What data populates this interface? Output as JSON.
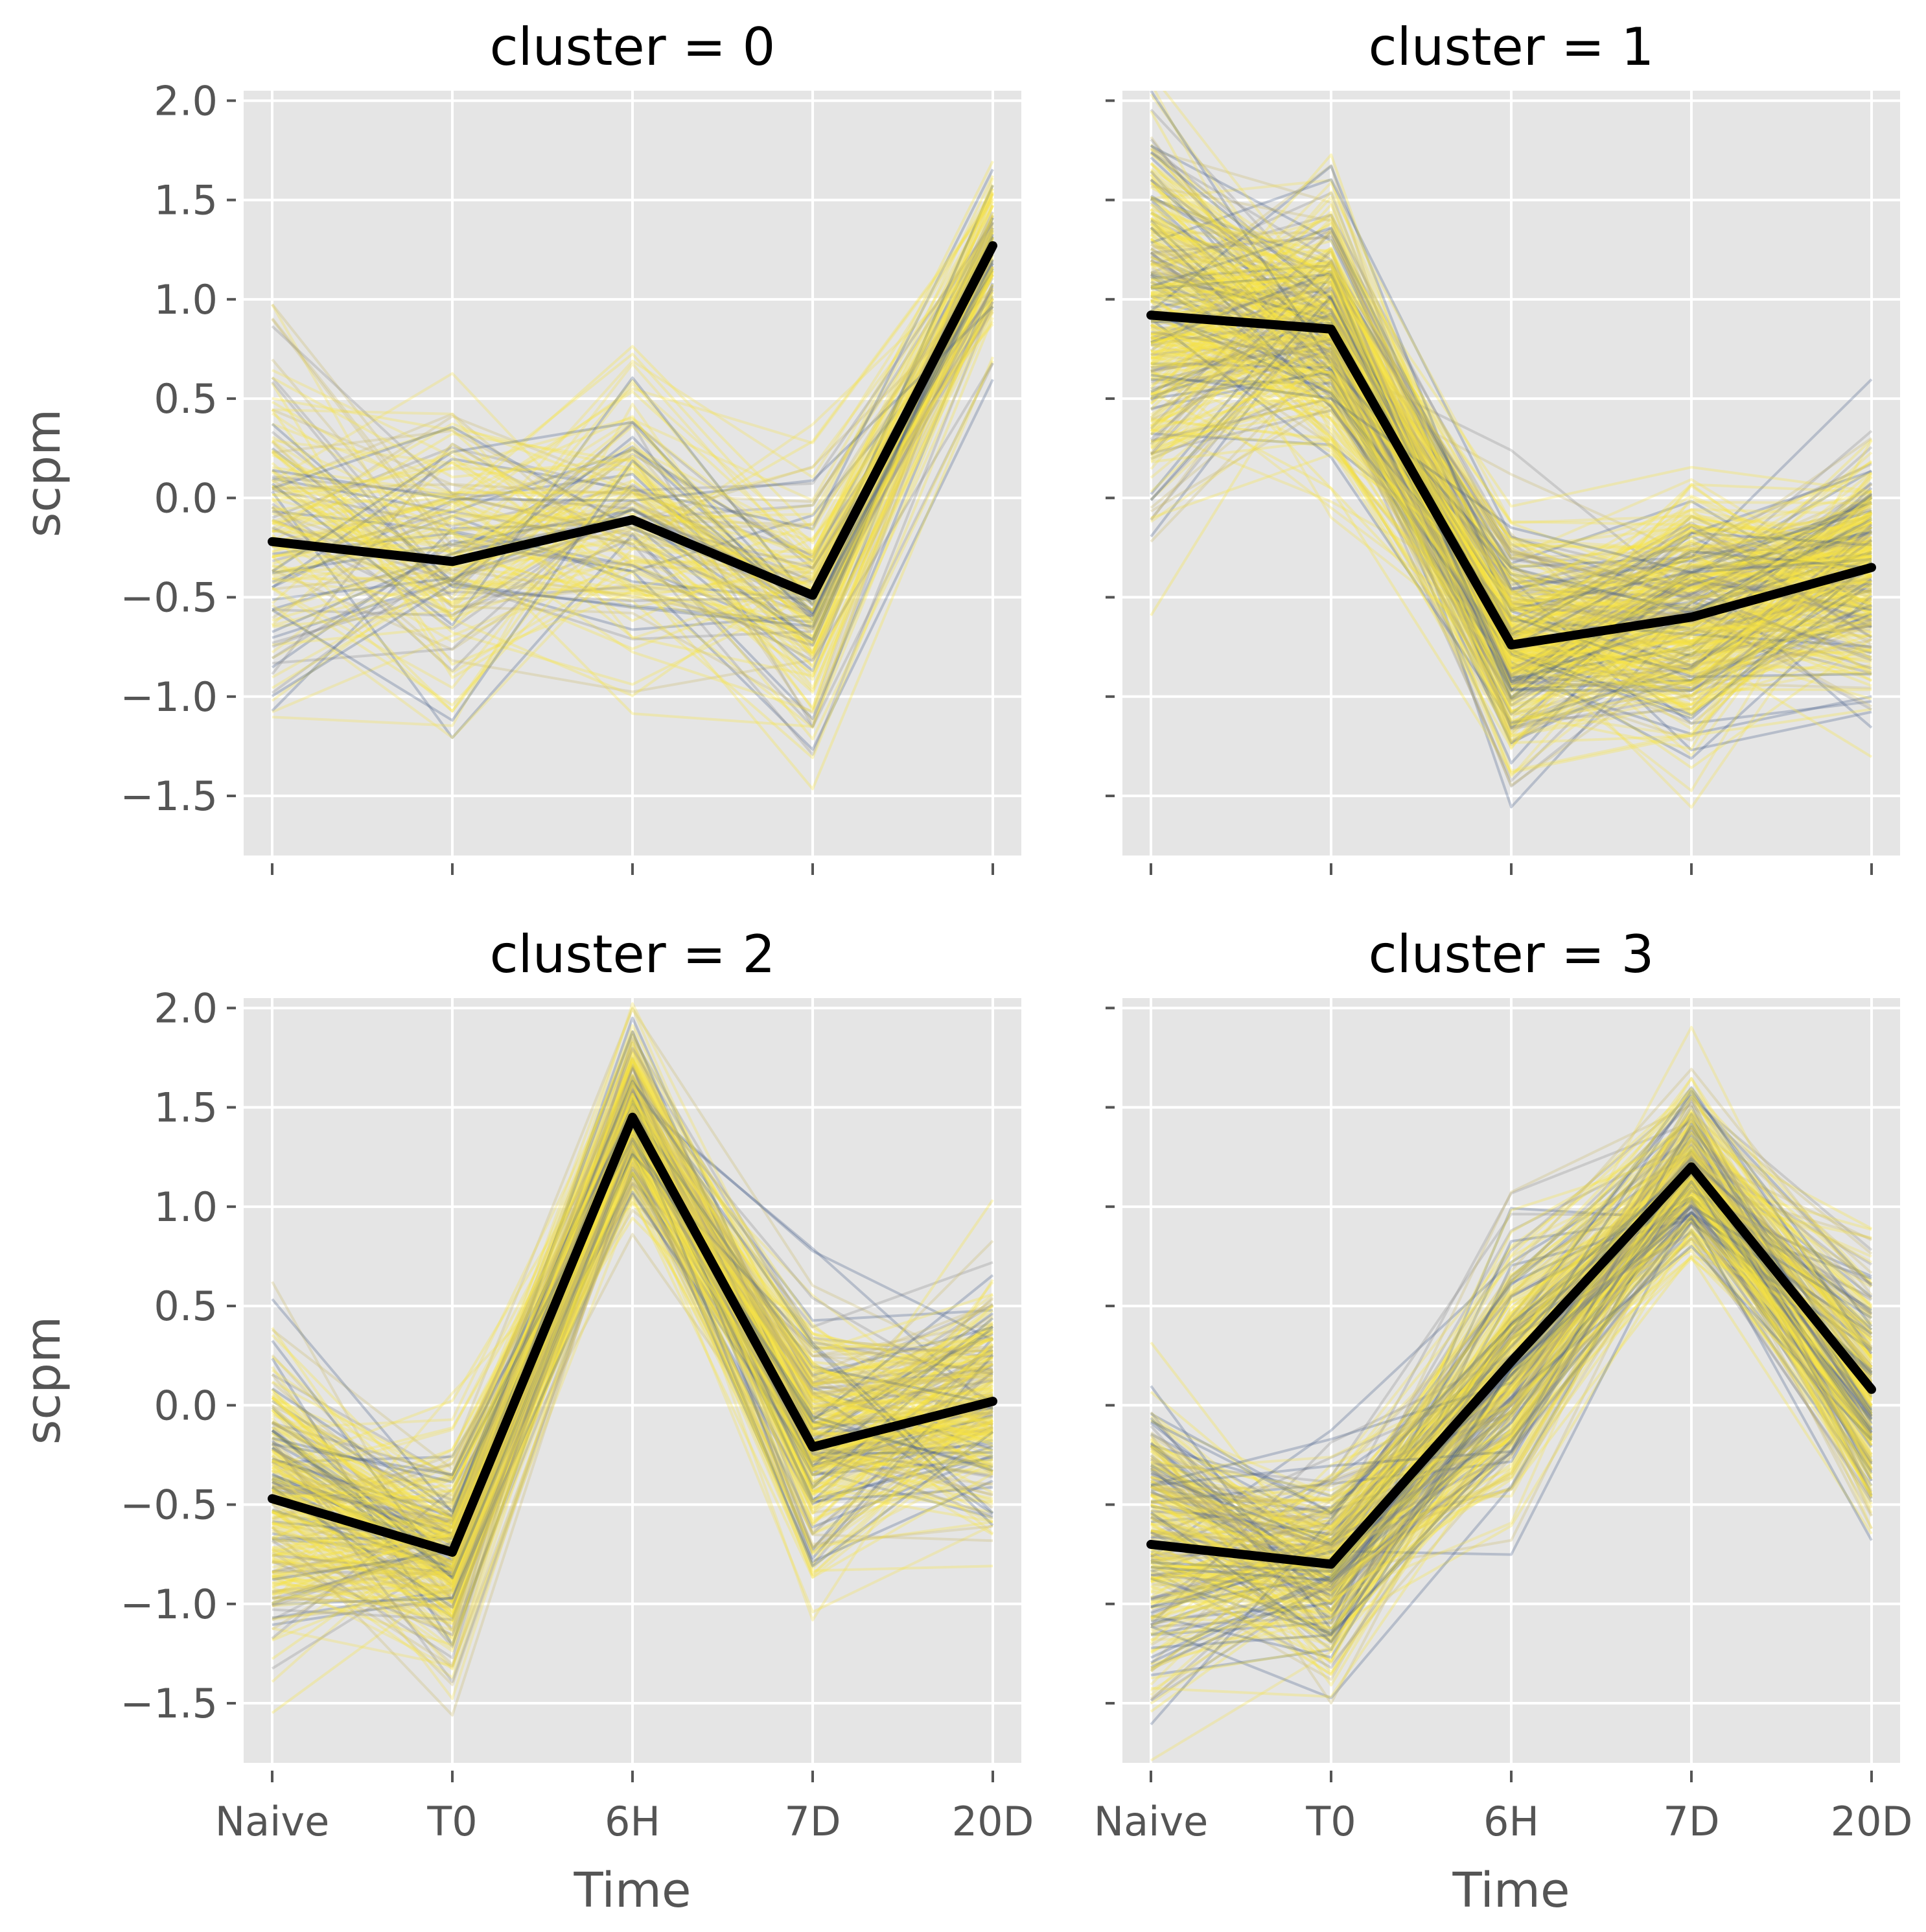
{
  "chart_data": {
    "type": "line",
    "facet_variable": "cluster",
    "x_categories": [
      "Naive",
      "T0",
      "6H",
      "7D",
      "20D"
    ],
    "xlabel": "Time",
    "ylabel": "scpm",
    "ylim": [
      -1.8,
      2.05
    ],
    "yticks": [
      -1.5,
      -1.0,
      -0.5,
      0.0,
      0.5,
      1.0,
      1.5,
      2.0
    ],
    "ytick_labels": [
      "−1.5",
      "−1.0",
      "−0.5",
      "0.0",
      "0.5",
      "1.0",
      "1.5",
      "2.0"
    ],
    "colors": {
      "panel_background": "#e5e5e5",
      "grid": "#ffffff",
      "mean_line": "#000000",
      "profile_colormap": [
        "#4a5f8c",
        "#8a8a8a",
        "#c9b96a",
        "#f4e04d",
        "#f9e43a"
      ]
    },
    "panels": [
      {
        "title": "cluster = 0",
        "mean": [
          -0.22,
          -0.32,
          -0.11,
          -0.49,
          1.27
        ],
        "spread": [
          0.45,
          0.35,
          0.35,
          0.3,
          0.18
        ],
        "profile_count": 150
      },
      {
        "title": "cluster = 1",
        "mean": [
          0.92,
          0.85,
          -0.74,
          -0.6,
          -0.35
        ],
        "spread": [
          0.45,
          0.3,
          0.25,
          0.28,
          0.3
        ],
        "profile_count": 350
      },
      {
        "title": "cluster = 2",
        "mean": [
          -0.47,
          -0.74,
          1.45,
          -0.21,
          0.02
        ],
        "spread": [
          0.35,
          0.25,
          0.18,
          0.3,
          0.3
        ],
        "profile_count": 280
      },
      {
        "title": "cluster = 3",
        "mean": [
          -0.7,
          -0.8,
          0.22,
          1.2,
          0.08
        ],
        "spread": [
          0.35,
          0.25,
          0.3,
          0.18,
          0.3
        ],
        "profile_count": 280
      }
    ]
  }
}
